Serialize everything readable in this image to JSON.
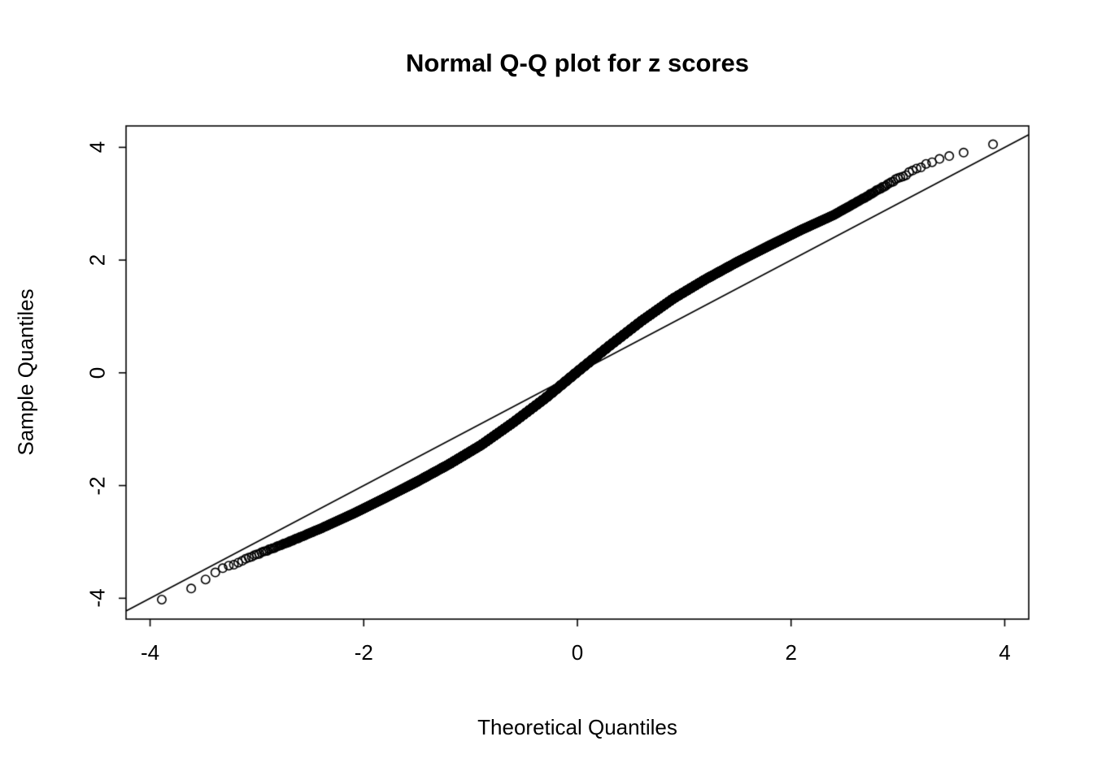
{
  "chart_data": {
    "type": "scatter",
    "title": "Normal Q-Q plot for z scores",
    "xlabel": "Theoretical Quantiles",
    "ylabel": "Sample Quantiles",
    "xlim": [
      -4.225,
      4.225
    ],
    "ylim": [
      -4.37,
      4.38
    ],
    "x_ticks": [
      -4,
      -2,
      0,
      2,
      4
    ],
    "x_tick_labels": [
      "-4",
      "-2",
      "0",
      "2",
      "4"
    ],
    "y_ticks": [
      -4,
      -2,
      0,
      2,
      4
    ],
    "y_tick_labels": [
      "-4",
      "-2",
      "0",
      "2",
      "4"
    ],
    "grid": false,
    "marker": "open-circle",
    "point_color": "#000000",
    "background_color": "#ffffff",
    "n_points": 10000,
    "reference_line": {
      "slope": 1,
      "intercept": 0
    },
    "qq_curve": {
      "theoretical": [
        -3.9,
        -3.6,
        -3.3,
        -3.0,
        -2.7,
        -2.4,
        -2.1,
        -1.8,
        -1.5,
        -1.2,
        -0.9,
        -0.6,
        -0.3,
        0.0,
        0.3,
        0.6,
        0.9,
        1.2,
        1.5,
        1.8,
        2.1,
        2.4,
        2.7,
        3.0,
        3.3,
        3.6,
        3.9
      ],
      "sample": [
        -4.04,
        -3.83,
        -3.45,
        -3.22,
        -3.0,
        -2.76,
        -2.5,
        -2.22,
        -1.93,
        -1.62,
        -1.28,
        -0.88,
        -0.45,
        0.02,
        0.48,
        0.92,
        1.32,
        1.66,
        1.97,
        2.26,
        2.54,
        2.8,
        3.12,
        3.45,
        3.72,
        3.92,
        4.06
      ]
    }
  }
}
